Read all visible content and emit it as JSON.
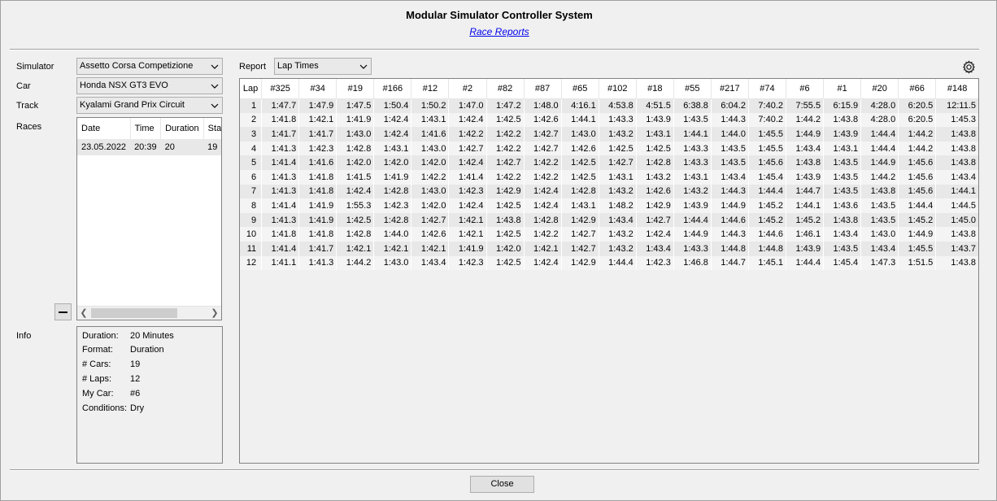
{
  "window": {
    "title": "Modular Simulator Controller System",
    "subtitle": "Race Reports"
  },
  "left": {
    "simulator_label": "Simulator",
    "simulator_value": "Assetto Corsa Competizione",
    "car_label": "Car",
    "car_value": "Honda NSX GT3 EVO",
    "track_label": "Track",
    "track_value": "Kyalami Grand Prix Circuit",
    "races_label": "Races",
    "races_columns": [
      "Date",
      "Time",
      "Duration",
      "Sta"
    ],
    "races_rows": [
      [
        "23.05.2022",
        "20:39",
        "20",
        "19"
      ]
    ],
    "info_label": "Info",
    "info": [
      {
        "key": "Duration:",
        "value": "20 Minutes"
      },
      {
        "key": "Format:",
        "value": "Duration"
      },
      {
        "key": "# Cars:",
        "value": "19"
      },
      {
        "key": "# Laps:",
        "value": "12"
      },
      {
        "key": "My Car:",
        "value": "#6"
      },
      {
        "key": "Conditions:",
        "value": "Dry"
      }
    ]
  },
  "report": {
    "label": "Report",
    "selected": "Lap Times",
    "columns": [
      "Lap",
      "#325",
      "#34",
      "#19",
      "#166",
      "#12",
      "#2",
      "#82",
      "#87",
      "#65",
      "#102",
      "#18",
      "#55",
      "#217",
      "#74",
      "#6",
      "#1",
      "#20",
      "#66",
      "#148"
    ],
    "rows": [
      [
        "1",
        "1:47.7",
        "1:47.9",
        "1:47.5",
        "1:50.4",
        "1:50.2",
        "1:47.0",
        "1:47.2",
        "1:48.0",
        "4:16.1",
        "4:53.8",
        "4:51.5",
        "6:38.8",
        "6:04.2",
        "7:40.2",
        "7:55.5",
        "6:15.9",
        "4:28.0",
        "6:20.5",
        "12:11.5"
      ],
      [
        "2",
        "1:41.8",
        "1:42.1",
        "1:41.9",
        "1:42.4",
        "1:43.1",
        "1:42.4",
        "1:42.5",
        "1:42.6",
        "1:44.1",
        "1:43.3",
        "1:43.9",
        "1:43.5",
        "1:44.3",
        "7:40.2",
        "1:44.2",
        "1:43.8",
        "4:28.0",
        "6:20.5",
        "1:45.3"
      ],
      [
        "3",
        "1:41.7",
        "1:41.7",
        "1:43.0",
        "1:42.4",
        "1:41.6",
        "1:42.2",
        "1:42.2",
        "1:42.7",
        "1:43.0",
        "1:43.2",
        "1:43.1",
        "1:44.1",
        "1:44.0",
        "1:45.5",
        "1:44.9",
        "1:43.9",
        "1:44.4",
        "1:44.2",
        "1:43.8"
      ],
      [
        "4",
        "1:41.3",
        "1:42.3",
        "1:42.8",
        "1:43.1",
        "1:43.0",
        "1:42.7",
        "1:42.2",
        "1:42.7",
        "1:42.6",
        "1:42.5",
        "1:42.5",
        "1:43.3",
        "1:43.5",
        "1:45.5",
        "1:43.4",
        "1:43.1",
        "1:44.4",
        "1:44.2",
        "1:43.8"
      ],
      [
        "5",
        "1:41.4",
        "1:41.6",
        "1:42.0",
        "1:42.0",
        "1:42.0",
        "1:42.4",
        "1:42.7",
        "1:42.2",
        "1:42.5",
        "1:42.7",
        "1:42.8",
        "1:43.3",
        "1:43.5",
        "1:45.6",
        "1:43.8",
        "1:43.5",
        "1:44.9",
        "1:45.6",
        "1:43.8"
      ],
      [
        "6",
        "1:41.3",
        "1:41.8",
        "1:41.5",
        "1:41.9",
        "1:42.2",
        "1:41.4",
        "1:42.2",
        "1:42.2",
        "1:42.5",
        "1:43.1",
        "1:43.2",
        "1:43.1",
        "1:43.4",
        "1:45.4",
        "1:43.9",
        "1:43.5",
        "1:44.2",
        "1:45.6",
        "1:43.4"
      ],
      [
        "7",
        "1:41.3",
        "1:41.8",
        "1:42.4",
        "1:42.8",
        "1:43.0",
        "1:42.3",
        "1:42.9",
        "1:42.4",
        "1:42.8",
        "1:43.2",
        "1:42.6",
        "1:43.2",
        "1:44.3",
        "1:44.4",
        "1:44.7",
        "1:43.5",
        "1:43.8",
        "1:45.6",
        "1:44.1"
      ],
      [
        "8",
        "1:41.4",
        "1:41.9",
        "1:55.3",
        "1:42.3",
        "1:42.0",
        "1:42.4",
        "1:42.5",
        "1:42.4",
        "1:43.1",
        "1:48.2",
        "1:42.9",
        "1:43.9",
        "1:44.9",
        "1:45.2",
        "1:44.1",
        "1:43.6",
        "1:43.5",
        "1:44.4",
        "1:44.5"
      ],
      [
        "9",
        "1:41.3",
        "1:41.9",
        "1:42.5",
        "1:42.8",
        "1:42.7",
        "1:42.1",
        "1:43.8",
        "1:42.8",
        "1:42.9",
        "1:43.4",
        "1:42.7",
        "1:44.4",
        "1:44.6",
        "1:45.2",
        "1:45.2",
        "1:43.8",
        "1:43.5",
        "1:45.2",
        "1:45.0"
      ],
      [
        "10",
        "1:41.8",
        "1:41.8",
        "1:42.8",
        "1:44.0",
        "1:42.6",
        "1:42.1",
        "1:42.5",
        "1:42.2",
        "1:42.7",
        "1:43.2",
        "1:42.4",
        "1:44.9",
        "1:44.3",
        "1:44.6",
        "1:46.1",
        "1:43.4",
        "1:43.0",
        "1:44.9",
        "1:43.8"
      ],
      [
        "11",
        "1:41.4",
        "1:41.7",
        "1:42.1",
        "1:42.1",
        "1:42.1",
        "1:41.9",
        "1:42.0",
        "1:42.1",
        "1:42.7",
        "1:43.2",
        "1:43.4",
        "1:43.3",
        "1:44.8",
        "1:44.8",
        "1:43.9",
        "1:43.5",
        "1:43.4",
        "1:45.5",
        "1:43.7"
      ],
      [
        "12",
        "1:41.1",
        "1:41.3",
        "1:44.2",
        "1:43.0",
        "1:43.4",
        "1:42.3",
        "1:42.5",
        "1:42.4",
        "1:42.9",
        "1:44.4",
        "1:42.3",
        "1:46.8",
        "1:44.7",
        "1:45.1",
        "1:44.4",
        "1:45.4",
        "1:47.3",
        "1:51.5",
        "1:43.8"
      ]
    ]
  },
  "footer": {
    "close_label": "Close"
  },
  "icons": {
    "gear": "gear-icon",
    "minus": "minus-icon",
    "chevron": "chevron-down-icon"
  }
}
